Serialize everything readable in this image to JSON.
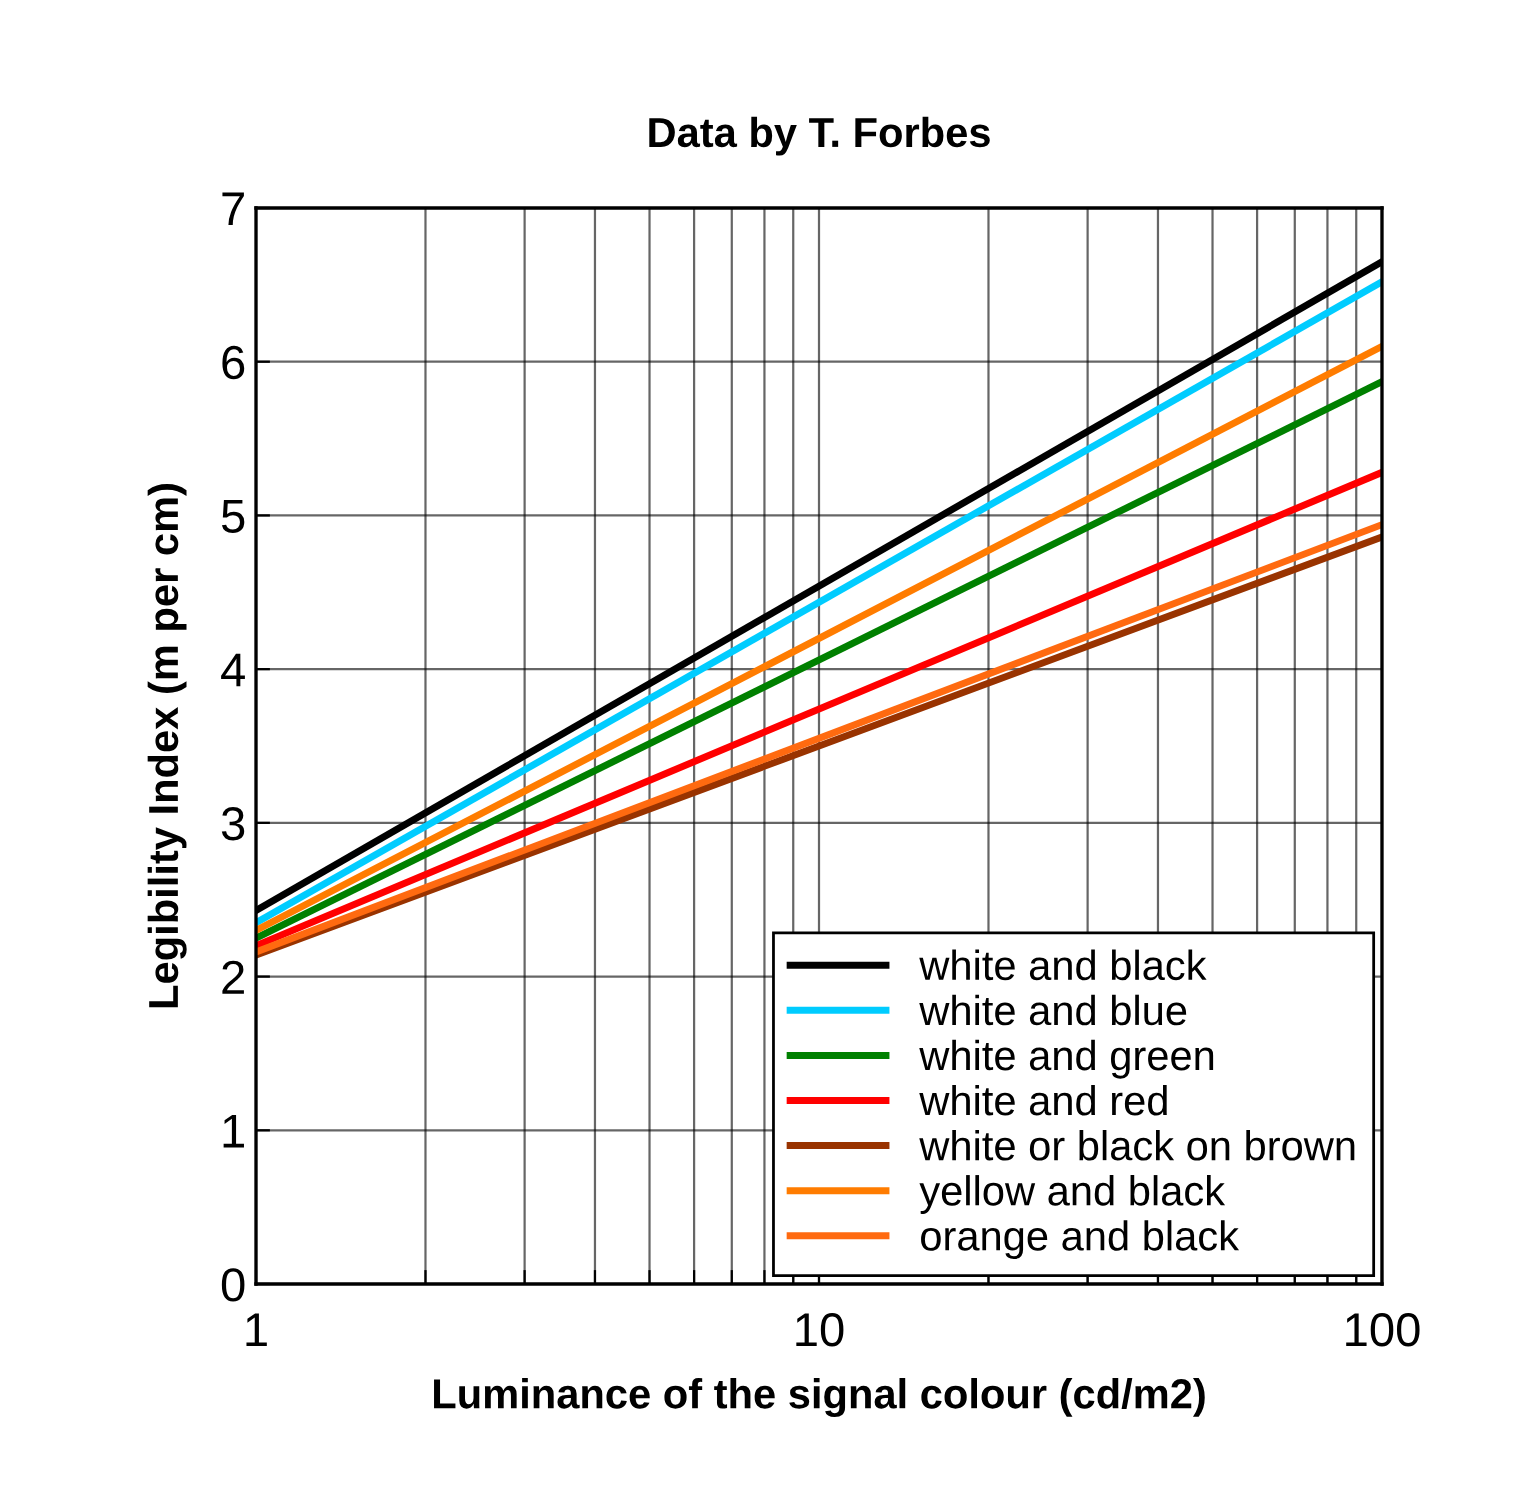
{
  "chart_data": {
    "type": "line",
    "title": "Data by T. Forbes",
    "xlabel": "Luminance of the signal colour (cd/m2)",
    "ylabel": "Legibility Index (m per cm)",
    "x": [
      1,
      100
    ],
    "log": "x",
    "xlim": [
      1,
      100
    ],
    "xticks": [
      1,
      {
        "value": 2,
        "label": null
      },
      {
        "value": 3,
        "label": null
      },
      {
        "value": 4,
        "label": null
      },
      {
        "value": 5,
        "label": null
      },
      {
        "value": 6,
        "label": null
      },
      {
        "value": 7,
        "label": null
      },
      {
        "value": 8,
        "label": null
      },
      {
        "value": 9,
        "label": null
      },
      10,
      {
        "value": 20,
        "label": null
      },
      {
        "value": 30,
        "label": null
      },
      {
        "value": 40,
        "label": null
      },
      {
        "value": 50,
        "label": null
      },
      {
        "value": 60,
        "label": null
      },
      {
        "value": 70,
        "label": null
      },
      {
        "value": 80,
        "label": null
      },
      {
        "value": 90,
        "label": null
      },
      100
    ],
    "ylim": [
      0,
      7
    ],
    "yticks": [
      0,
      1,
      2,
      3,
      4,
      5,
      6,
      7
    ],
    "grid": true,
    "legend": "bottom right",
    "marker": "none",
    "line_style": "solid",
    "series": [
      {
        "name": "white and black",
        "color": "#000000",
        "values": [
          2.43,
          6.65
        ]
      },
      {
        "name": "white and blue",
        "color": "#00ccff",
        "values": [
          2.35,
          6.52
        ]
      },
      {
        "name": "white and green",
        "color": "#008000",
        "values": [
          2.25,
          5.87
        ]
      },
      {
        "name": "white and red",
        "color": "#ff0000",
        "values": [
          2.2,
          5.28
        ]
      },
      {
        "name": "white or black on brown",
        "color": "#993300",
        "values": [
          2.14,
          4.86
        ]
      },
      {
        "name": "yellow and black",
        "color": "#ff7c00",
        "values": [
          2.3,
          6.1
        ]
      },
      {
        "name": "orange and black",
        "color": "#ff6a10",
        "values": [
          2.16,
          4.94
        ]
      }
    ]
  }
}
